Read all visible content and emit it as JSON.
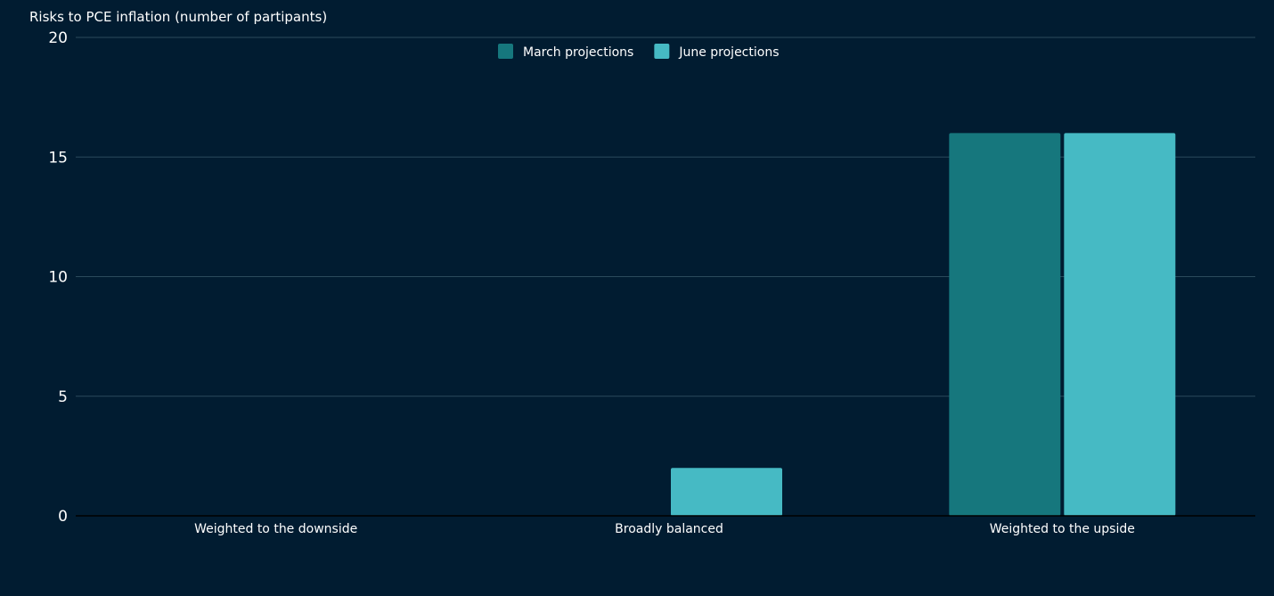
{
  "chart_data": {
    "type": "bar",
    "ylabel": "Risks to PCE inflation (number of partipants)",
    "categories": [
      "Weighted to the downside",
      "Broadly balanced",
      "Weighted to the upside"
    ],
    "series": [
      {
        "name": "March projections",
        "values": [
          0,
          0,
          16
        ],
        "color": "#16777d"
      },
      {
        "name": "June projections",
        "values": [
          0,
          2,
          16
        ],
        "color": "#46bac4"
      }
    ],
    "ylim": [
      0,
      20
    ],
    "yticks": [
      "0",
      "5",
      "10",
      "15",
      "20"
    ],
    "grid": true,
    "legend": "top-center",
    "colors": {
      "background": "#011c31",
      "grid": "#2b4a5c",
      "axis": "#000000",
      "text": "#ffffff"
    }
  }
}
